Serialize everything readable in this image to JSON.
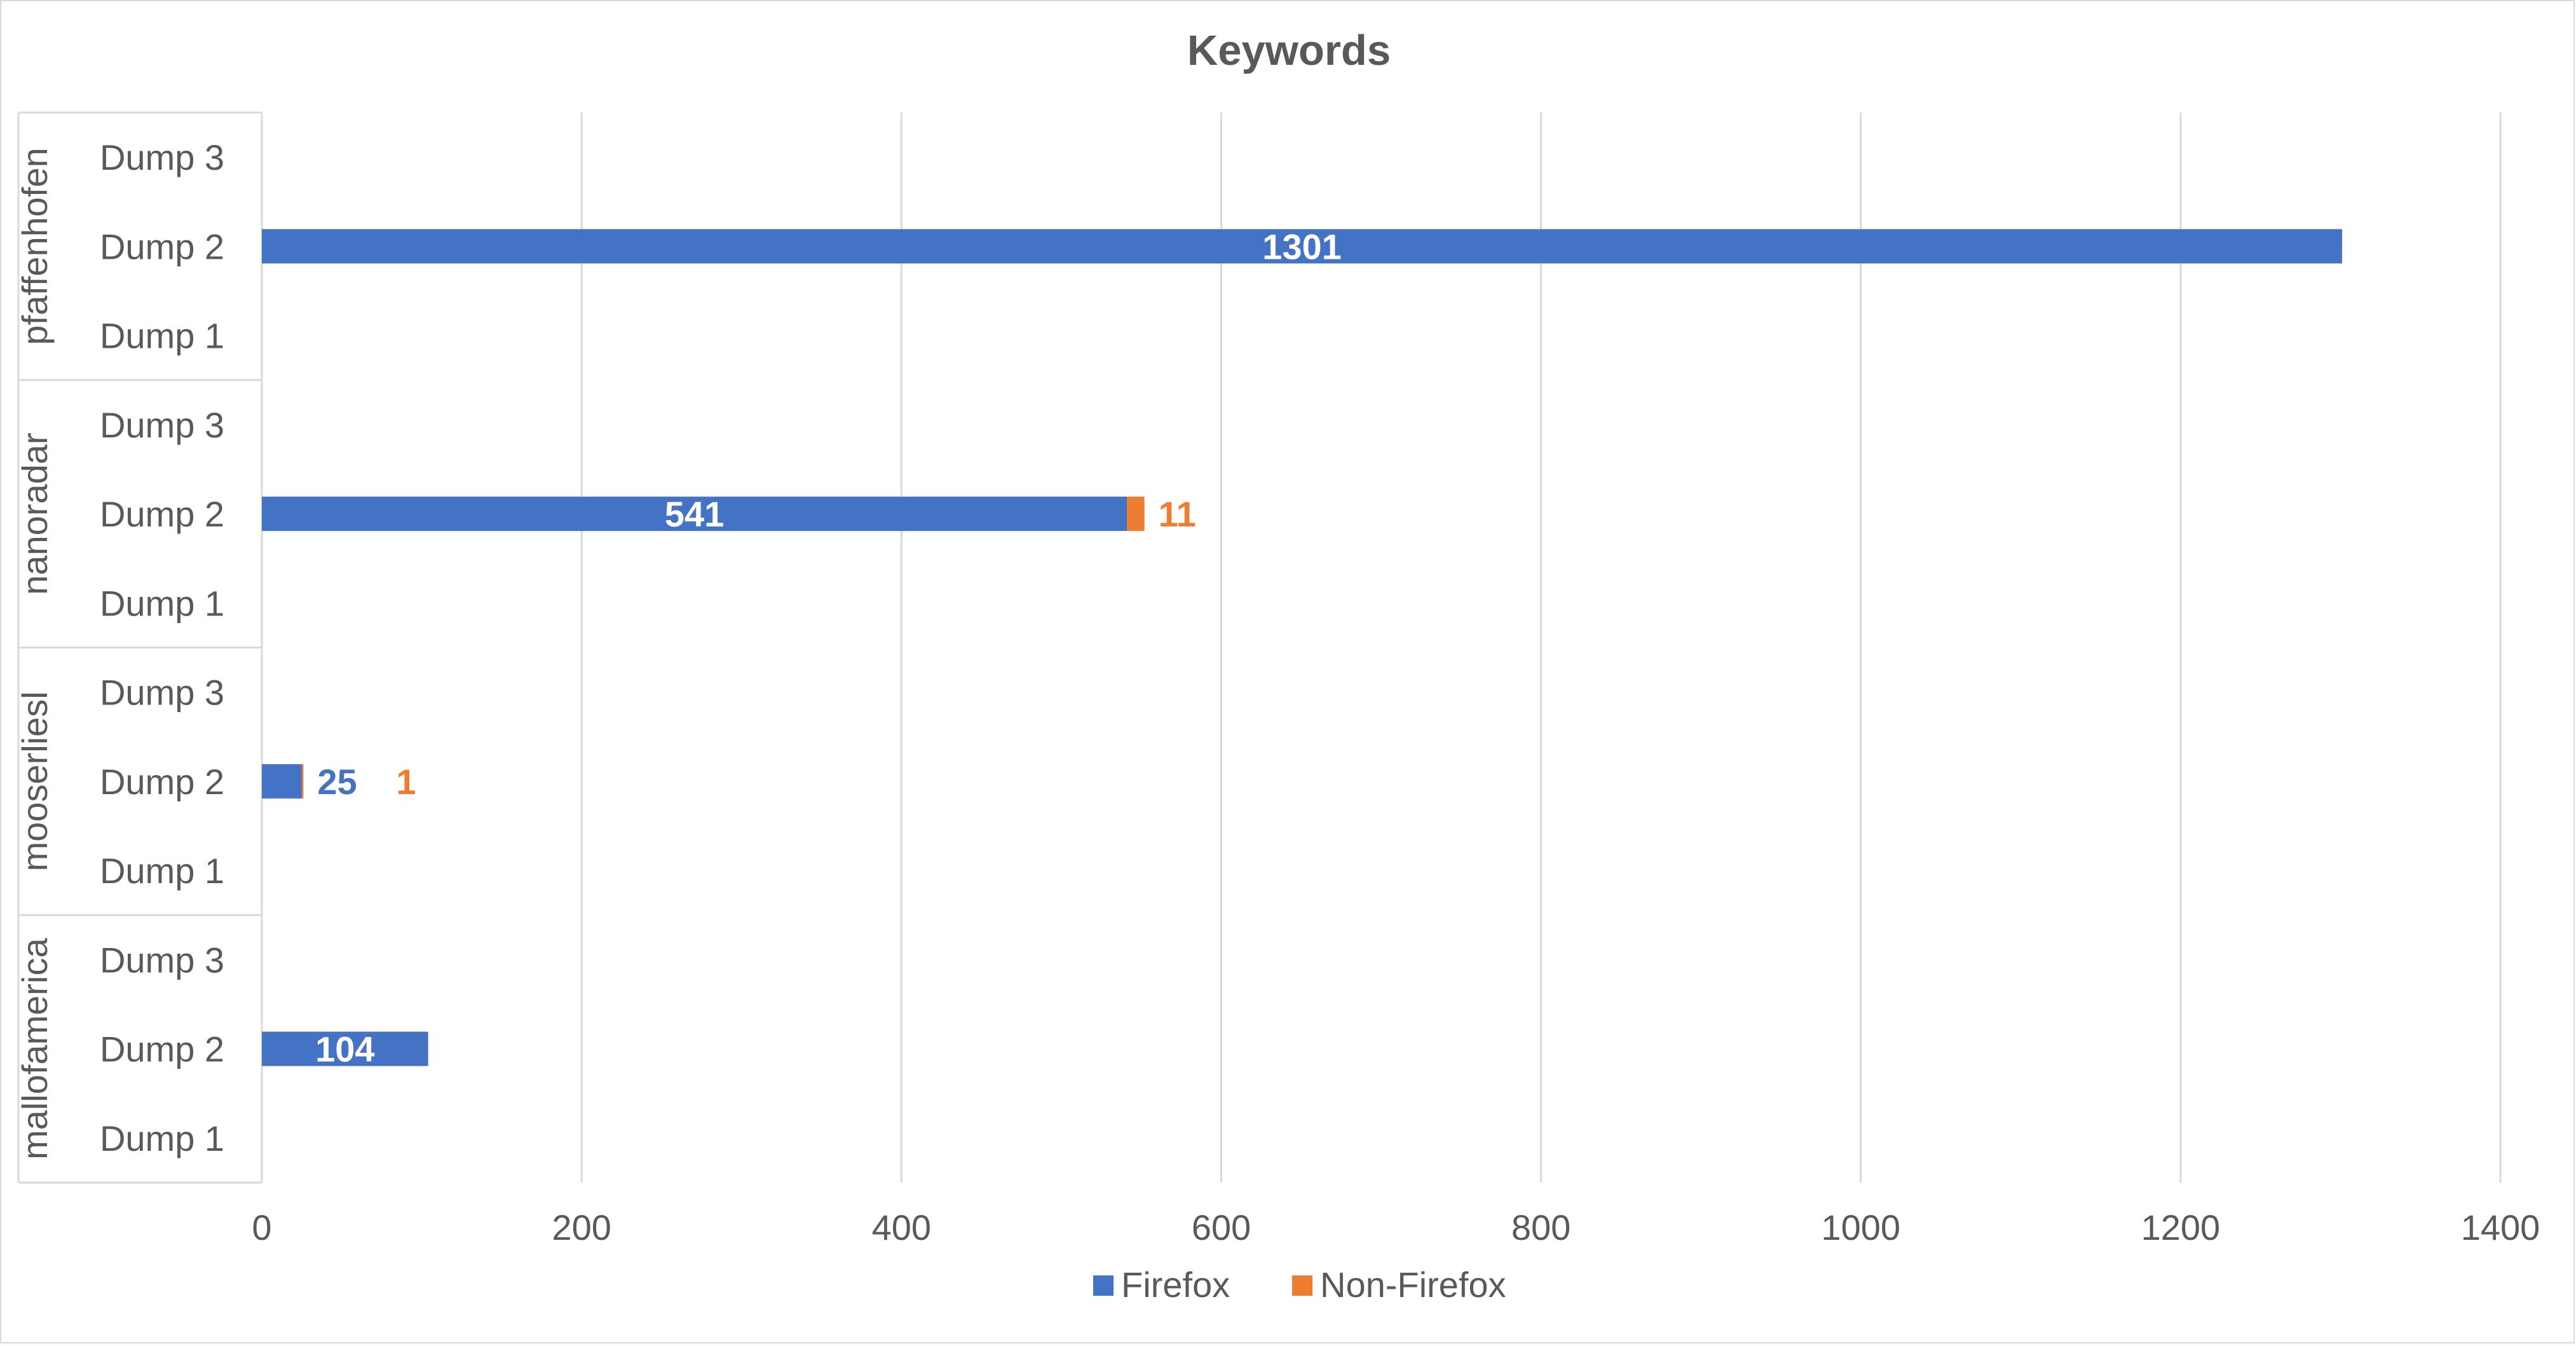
{
  "chart_data": {
    "type": "bar",
    "orientation": "horizontal",
    "stacked": true,
    "title": "Keywords",
    "xlabel": "",
    "ylabel": "",
    "xlim": [
      0,
      1400
    ],
    "x_ticks": [
      "0",
      "200",
      "400",
      "600",
      "800",
      "1000",
      "1200",
      "1400"
    ],
    "grid": true,
    "legend_position": "bottom",
    "groups": [
      {
        "name": "pfaffenhofen",
        "categories": [
          "Dump 3",
          "Dump 2",
          "Dump 1"
        ]
      },
      {
        "name": "nanoradar",
        "categories": [
          "Dump 3",
          "Dump 2",
          "Dump 1"
        ]
      },
      {
        "name": "mooserliesl",
        "categories": [
          "Dump 3",
          "Dump 2",
          "Dump 1"
        ]
      },
      {
        "name": "mallofamerica",
        "categories": [
          "Dump 3",
          "Dump 2",
          "Dump 1"
        ]
      }
    ],
    "series": [
      {
        "name": "Firefox",
        "color": "#4472c4",
        "values": [
          null,
          1301,
          null,
          null,
          541,
          null,
          null,
          25,
          null,
          null,
          104,
          null
        ],
        "labels": [
          "",
          "1301",
          "",
          "",
          "541",
          "",
          "",
          "25",
          "",
          "",
          "104",
          ""
        ]
      },
      {
        "name": "Non-Firefox",
        "color": "#ed7d31",
        "values": [
          null,
          null,
          null,
          null,
          11,
          null,
          null,
          1,
          null,
          null,
          null,
          null
        ],
        "labels": [
          "",
          "",
          "",
          "",
          "11",
          "",
          "",
          "1",
          "",
          "",
          "",
          ""
        ]
      }
    ]
  }
}
